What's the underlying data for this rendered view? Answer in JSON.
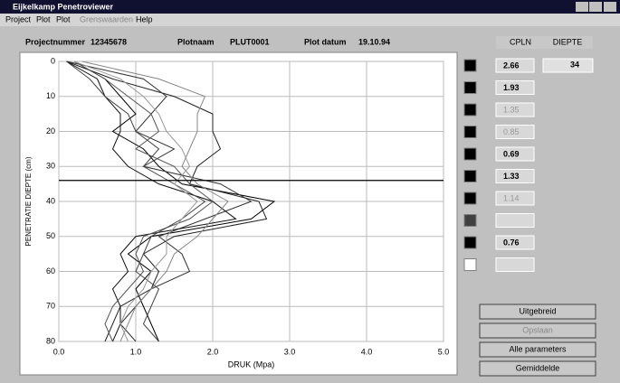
{
  "window": {
    "title": "Eijkelkamp Penetroviewer",
    "menu": [
      "Project",
      "Plot",
      "Plot",
      "Grenswaarden",
      "Help"
    ]
  },
  "header": {
    "project_label": "Projectnummer",
    "project": "12345678",
    "plot_label": "Plotnaam",
    "plot": "PLUT0001",
    "date_label": "Plot datum",
    "date": "19.10.94"
  },
  "panel": {
    "column_headers": [
      "CPLN",
      "DIEPTE"
    ],
    "depth": "34",
    "rows": [
      {
        "value": "2.66",
        "swatch": "#000000",
        "active": true
      },
      {
        "value": "1.93",
        "swatch": "#000000",
        "active": true
      },
      {
        "value": "1.35",
        "swatch": "#000000",
        "active": false
      },
      {
        "value": "0.85",
        "swatch": "#000000",
        "active": false
      },
      {
        "value": "0.69",
        "swatch": "#000000",
        "active": true
      },
      {
        "value": "1.33",
        "swatch": "#000000",
        "active": true
      },
      {
        "value": "1.14",
        "swatch": "#000000",
        "active": false
      },
      {
        "swatch": "#404040",
        "active": false
      },
      {
        "value": "0.76",
        "swatch": "#000000",
        "active": true
      },
      {
        "swatch": "#ffffff",
        "active": false
      }
    ]
  },
  "buttons": [
    {
      "label": "Uitgebreid",
      "enabled": true
    },
    {
      "label": "Opslaan",
      "enabled": false
    },
    {
      "label": "Alle parameters",
      "enabled": true
    },
    {
      "label": "Gemiddelde",
      "enabled": true
    }
  ],
  "chart_data": {
    "type": "line",
    "xlabel": "DRUK (Mpa)",
    "ylabel": "PENETRATIE DIEPTE (cm)",
    "y": [
      0,
      5,
      10,
      15,
      20,
      25,
      30,
      35,
      40,
      45,
      50,
      55,
      60,
      65,
      70,
      75,
      80
    ],
    "ylim": [
      0,
      80
    ],
    "yticks": [
      0,
      10,
      20,
      30,
      40,
      50,
      60,
      70,
      80
    ],
    "xlim": [
      0,
      5
    ],
    "xticks": [
      {
        "value": 0,
        "label": "0.0"
      },
      {
        "value": 1,
        "label": "1.0"
      },
      {
        "value": 2,
        "label": "2.0"
      },
      {
        "value": 3,
        "label": "3.0"
      },
      {
        "value": 4,
        "label": "4.0"
      },
      {
        "value": 5,
        "label": "5.0"
      }
    ],
    "grid": true,
    "marker_depth": 34,
    "series": [
      {
        "color": "#000000",
        "values": [
          0.2,
          0.6,
          0.8,
          1.0,
          0.7,
          1.1,
          1.3,
          1.6,
          2.8,
          2.5,
          1.2,
          0.9,
          1.2,
          1.0,
          1.1,
          1.2,
          1.3
        ]
      },
      {
        "color": "#222222",
        "values": [
          0.1,
          0.7,
          1.5,
          2.0,
          2.0,
          2.1,
          1.8,
          1.7,
          2.6,
          2.7,
          1.5,
          1.1,
          1.3,
          1.2,
          0.8,
          0.7,
          0.6
        ]
      },
      {
        "color": "#333333",
        "values": [
          0.1,
          1.1,
          1.4,
          1.2,
          1.0,
          1.5,
          1.1,
          2.1,
          2.5,
          1.9,
          1.3,
          1.6,
          1.7,
          1.2,
          1.0,
          0.8,
          1.0
        ]
      },
      {
        "color": "#111111",
        "values": [
          0.1,
          0.5,
          0.6,
          0.8,
          0.8,
          0.7,
          0.9,
          1.3,
          2.0,
          2.3,
          1.0,
          0.8,
          0.9,
          0.7,
          0.8,
          0.8,
          0.7
        ]
      },
      {
        "color": "#555555",
        "values": [
          0.2,
          0.6,
          0.9,
          1.2,
          1.3,
          1.0,
          1.5,
          1.7,
          2.0,
          1.7,
          1.1,
          1.0,
          1.1,
          0.9,
          0.7,
          0.6,
          0.7
        ]
      },
      {
        "color": "#444444",
        "values": [
          0.1,
          0.4,
          0.6,
          0.9,
          1.0,
          1.3,
          1.1,
          1.5,
          1.9,
          1.6,
          1.2,
          1.1,
          1.0,
          1.3,
          1.2,
          1.1,
          1.3
        ]
      },
      {
        "color": "#888888",
        "values": [
          0.3,
          1.3,
          1.9,
          1.8,
          1.8,
          1.7,
          1.6,
          1.8,
          2.2,
          2.0,
          1.8,
          1.5,
          1.4,
          1.2,
          1.0,
          0.9,
          0.8
        ]
      },
      {
        "color": "#999999",
        "values": [
          0.2,
          0.8,
          1.1,
          1.3,
          1.4,
          1.6,
          1.7,
          1.5,
          1.8,
          1.6,
          1.4,
          1.4,
          1.2,
          1.1,
          0.9,
          0.8,
          0.9
        ]
      }
    ]
  }
}
